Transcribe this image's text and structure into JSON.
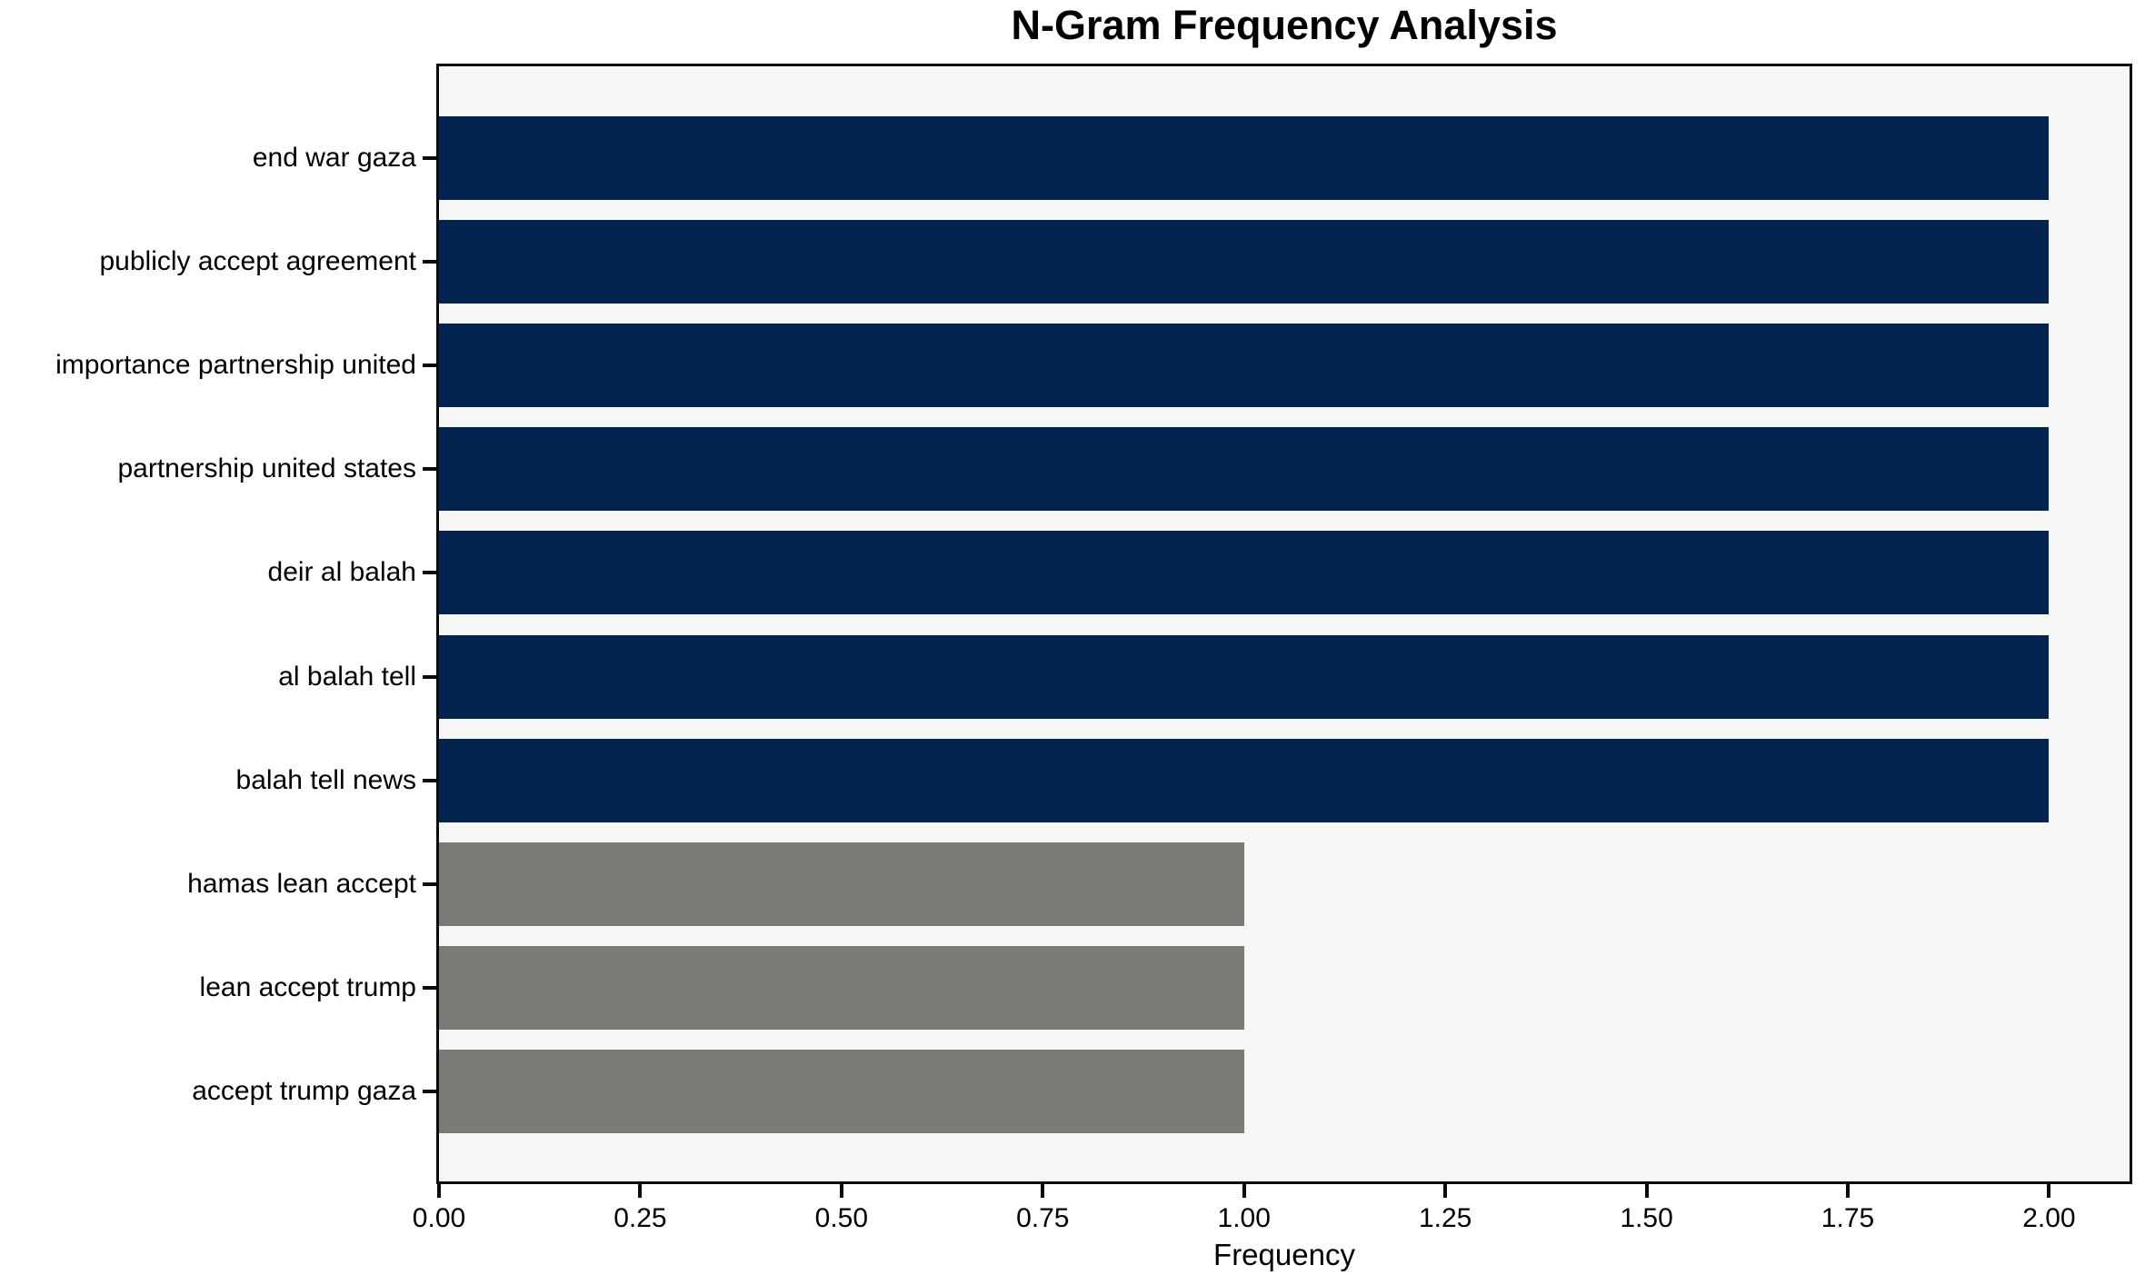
{
  "chart_data": {
    "type": "bar",
    "orientation": "horizontal",
    "title": "N-Gram Frequency Analysis",
    "xlabel": "Frequency",
    "ylabel": "",
    "categories": [
      "end war gaza",
      "publicly accept agreement",
      "importance partnership united",
      "partnership united states",
      "deir al balah",
      "al balah tell",
      "balah tell news",
      "hamas lean accept",
      "lean accept trump",
      "accept trump gaza"
    ],
    "values": [
      2,
      2,
      2,
      2,
      2,
      2,
      2,
      1,
      1,
      1
    ],
    "bar_colors": [
      "#032450",
      "#032450",
      "#032450",
      "#032450",
      "#032450",
      "#032450",
      "#032450",
      "#7b7a76",
      "#7b7a76",
      "#7b7a76"
    ],
    "xlim": [
      0,
      2.1
    ],
    "x_ticks": [
      {
        "value": 0.0,
        "label": "0.00"
      },
      {
        "value": 0.25,
        "label": "0.25"
      },
      {
        "value": 0.5,
        "label": "0.50"
      },
      {
        "value": 0.75,
        "label": "0.75"
      },
      {
        "value": 1.0,
        "label": "1.00"
      },
      {
        "value": 1.25,
        "label": "1.25"
      },
      {
        "value": 1.5,
        "label": "1.50"
      },
      {
        "value": 1.75,
        "label": "1.75"
      },
      {
        "value": 2.0,
        "label": "2.00"
      }
    ],
    "grid": false,
    "legend": "none",
    "colors": {
      "bar_frequency_2": "#032450",
      "bar_frequency_1": "#7b7a76",
      "plot_background": "#f7f7f6",
      "figure_background": "#ffffff",
      "spine": "#0a0a0a",
      "text": "#000000"
    }
  }
}
